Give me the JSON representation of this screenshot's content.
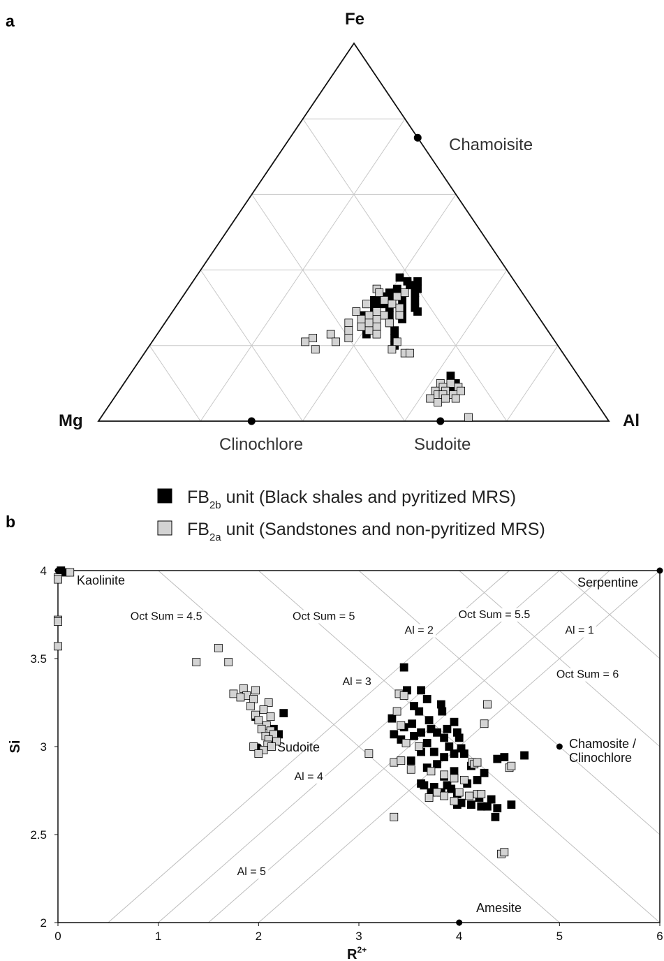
{
  "chart_data": [
    {
      "panel": "a",
      "type": "scatter",
      "subtype": "ternary",
      "vertices": {
        "top": "Fe",
        "left": "Mg",
        "right": "Al"
      },
      "grid": true,
      "grid_step": 0.2,
      "reference_points": [
        {
          "label": "Chamoisite",
          "Fe": 0.75,
          "Mg": 0.0,
          "Al": 0.25
        },
        {
          "label": "Clinochlore",
          "Fe": 0.0,
          "Mg": 0.7,
          "Al": 0.3
        },
        {
          "label": "Sudoite",
          "Fe": 0.0,
          "Mg": 0.33,
          "Al": 0.67
        }
      ],
      "series": [
        {
          "name": "FB2b unit (Black shales and pyritized MRS)",
          "color": "#000000",
          "points": [
            {
              "Fe": 0.38,
              "Al": 0.4
            },
            {
              "Fe": 0.37,
              "Al": 0.42
            },
            {
              "Fe": 0.37,
              "Al": 0.44
            },
            {
              "Fe": 0.36,
              "Al": 0.43
            },
            {
              "Fe": 0.35,
              "Al": 0.41
            },
            {
              "Fe": 0.34,
              "Al": 0.4
            },
            {
              "Fe": 0.34,
              "Al": 0.45
            },
            {
              "Fe": 0.33,
              "Al": 0.43
            },
            {
              "Fe": 0.32,
              "Al": 0.38
            },
            {
              "Fe": 0.32,
              "Al": 0.41
            },
            {
              "Fe": 0.32,
              "Al": 0.46
            },
            {
              "Fe": 0.31,
              "Al": 0.44
            },
            {
              "Fe": 0.3,
              "Al": 0.39
            },
            {
              "Fe": 0.3,
              "Al": 0.42
            },
            {
              "Fe": 0.3,
              "Al": 0.47
            },
            {
              "Fe": 0.29,
              "Al": 0.45
            },
            {
              "Fe": 0.28,
              "Al": 0.38
            },
            {
              "Fe": 0.28,
              "Al": 0.43
            },
            {
              "Fe": 0.27,
              "Al": 0.41
            },
            {
              "Fe": 0.27,
              "Al": 0.46
            },
            {
              "Fe": 0.26,
              "Al": 0.4
            },
            {
              "Fe": 0.26,
              "Al": 0.44
            },
            {
              "Fe": 0.25,
              "Al": 0.42
            },
            {
              "Fe": 0.24,
              "Al": 0.46
            },
            {
              "Fe": 0.23,
              "Al": 0.41
            },
            {
              "Fe": 0.22,
              "Al": 0.47
            },
            {
              "Fe": 0.2,
              "Al": 0.48
            },
            {
              "Fe": 0.31,
              "Al": 0.4
            },
            {
              "Fe": 0.33,
              "Al": 0.39
            },
            {
              "Fe": 0.29,
              "Al": 0.48
            },
            {
              "Fe": 0.35,
              "Al": 0.45
            },
            {
              "Fe": 0.25,
              "Al": 0.39
            },
            {
              "Fe": 0.12,
              "Al": 0.63
            },
            {
              "Fe": 0.1,
              "Al": 0.65
            },
            {
              "Fe": 0.09,
              "Al": 0.64
            },
            {
              "Fe": 0.08,
              "Al": 0.66
            },
            {
              "Fe": 0.07,
              "Al": 0.65
            },
            {
              "Fe": 0.06,
              "Al": 0.64
            }
          ]
        },
        {
          "name": "FB2a unit (Sandstones and non-pyritized MRS)",
          "color": "#d3d3d3",
          "points": [
            {
              "Fe": 0.35,
              "Al": 0.37
            },
            {
              "Fe": 0.34,
              "Al": 0.38
            },
            {
              "Fe": 0.33,
              "Al": 0.42
            },
            {
              "Fe": 0.32,
              "Al": 0.4
            },
            {
              "Fe": 0.31,
              "Al": 0.37
            },
            {
              "Fe": 0.31,
              "Al": 0.42
            },
            {
              "Fe": 0.3,
              "Al": 0.44
            },
            {
              "Fe": 0.29,
              "Al": 0.36
            },
            {
              "Fe": 0.29,
              "Al": 0.4
            },
            {
              "Fe": 0.28,
              "Al": 0.45
            },
            {
              "Fe": 0.28,
              "Al": 0.42
            },
            {
              "Fe": 0.27,
              "Al": 0.38
            },
            {
              "Fe": 0.27,
              "Al": 0.41
            },
            {
              "Fe": 0.26,
              "Al": 0.44
            },
            {
              "Fe": 0.26,
              "Al": 0.36
            },
            {
              "Fe": 0.25,
              "Al": 0.39
            },
            {
              "Fe": 0.25,
              "Al": 0.42
            },
            {
              "Fe": 0.24,
              "Al": 0.37
            },
            {
              "Fe": 0.24,
              "Al": 0.41
            },
            {
              "Fe": 0.23,
              "Al": 0.34
            },
            {
              "Fe": 0.23,
              "Al": 0.43
            },
            {
              "Fe": 0.22,
              "Al": 0.31
            },
            {
              "Fe": 0.22,
              "Al": 0.38
            },
            {
              "Fe": 0.21,
              "Al": 0.36
            },
            {
              "Fe": 0.21,
              "Al": 0.3
            },
            {
              "Fe": 0.19,
              "Al": 0.33
            },
            {
              "Fe": 0.34,
              "Al": 0.43
            },
            {
              "Fe": 0.21,
              "Al": 0.48
            },
            {
              "Fe": 0.19,
              "Al": 0.48
            },
            {
              "Fe": 0.18,
              "Al": 0.51
            },
            {
              "Fe": 0.18,
              "Al": 0.52
            },
            {
              "Fe": 0.28,
              "Al": 0.39
            },
            {
              "Fe": 0.26,
              "Al": 0.4
            },
            {
              "Fe": 0.1,
              "Al": 0.62
            },
            {
              "Fe": 0.1,
              "Al": 0.64
            },
            {
              "Fe": 0.09,
              "Al": 0.66
            },
            {
              "Fe": 0.09,
              "Al": 0.63
            },
            {
              "Fe": 0.08,
              "Al": 0.62
            },
            {
              "Fe": 0.08,
              "Al": 0.64
            },
            {
              "Fe": 0.08,
              "Al": 0.67
            },
            {
              "Fe": 0.07,
              "Al": 0.63
            },
            {
              "Fe": 0.07,
              "Al": 0.66
            },
            {
              "Fe": 0.07,
              "Al": 0.64
            },
            {
              "Fe": 0.06,
              "Al": 0.62
            },
            {
              "Fe": 0.06,
              "Al": 0.65
            },
            {
              "Fe": 0.06,
              "Al": 0.67
            },
            {
              "Fe": 0.05,
              "Al": 0.64
            },
            {
              "Fe": 0.01,
              "Al": 0.72
            }
          ]
        }
      ],
      "legend": [
        {
          "main": "FB",
          "sub": "2b",
          "rest": " unit (Black shales and pyritized MRS)",
          "color": "#000000"
        },
        {
          "main": "FB",
          "sub": "2a",
          "rest": " unit (Sandstones and non-pyritized MRS)",
          "color": "#d3d3d3"
        }
      ],
      "legend_position": "bottom-center"
    },
    {
      "panel": "b",
      "type": "scatter",
      "xlabel": "R",
      "xlabel_sup": "2+",
      "ylabel": "Si",
      "xlim": [
        0,
        6
      ],
      "ylim": [
        2,
        4
      ],
      "xticks": [
        "0",
        "1",
        "2",
        "3",
        "4",
        "5",
        "6"
      ],
      "yticks": [
        "2",
        "2.5",
        "3",
        "3.5",
        "4"
      ],
      "grid": false,
      "oct_sum_lines": [
        {
          "label": "Oct Sum = 4.5",
          "value": 4.5
        },
        {
          "label": "Oct Sum = 5",
          "value": 5
        },
        {
          "label": "Oct Sum = 5.5",
          "value": 5.5
        },
        {
          "label": "Oct Sum = 6",
          "value": 6
        }
      ],
      "al_lines": [
        {
          "label": "Al = 1",
          "value": 1
        },
        {
          "label": "Al = 2",
          "value": 2
        },
        {
          "label": "Al = 3",
          "value": 3
        },
        {
          "label": "Al = 4",
          "value": 4
        },
        {
          "label": "Al = 5",
          "value": 5
        }
      ],
      "reference_points": [
        {
          "label": "Kaolinite",
          "x": 0,
          "y": 4
        },
        {
          "label": "Serpentine",
          "x": 6,
          "y": 4
        },
        {
          "label": "Sudoite",
          "x": 2,
          "y": 3
        },
        {
          "label": "Chamosite / Clinochlore",
          "x": 5,
          "y": 3
        },
        {
          "label": "Amesite",
          "x": 4,
          "y": 2
        }
      ],
      "series": [
        {
          "name": "FB2b unit (Black shales and pyritized MRS)",
          "color": "#000000",
          "points": [
            [
              0.03,
              4.0
            ],
            [
              0.08,
              3.99
            ],
            [
              2.25,
              3.19
            ],
            [
              1.97,
              3.17
            ],
            [
              2.15,
              3.1
            ],
            [
              2.2,
              3.07
            ],
            [
              3.45,
              3.45
            ],
            [
              3.48,
              3.32
            ],
            [
              3.62,
              3.32
            ],
            [
              3.68,
              3.27
            ],
            [
              3.82,
              3.24
            ],
            [
              3.55,
              3.23
            ],
            [
              3.6,
              3.2
            ],
            [
              3.83,
              3.2
            ],
            [
              3.33,
              3.16
            ],
            [
              3.7,
              3.15
            ],
            [
              3.53,
              3.13
            ],
            [
              3.95,
              3.14
            ],
            [
              3.45,
              3.11
            ],
            [
              3.72,
              3.1
            ],
            [
              3.88,
              3.1
            ],
            [
              3.62,
              3.08
            ],
            [
              3.78,
              3.08
            ],
            [
              3.98,
              3.08
            ],
            [
              3.35,
              3.07
            ],
            [
              3.55,
              3.06
            ],
            [
              3.85,
              3.05
            ],
            [
              4.0,
              3.05
            ],
            [
              3.68,
              3.02
            ],
            [
              3.42,
              3.04
            ],
            [
              3.9,
              3.0
            ],
            [
              4.02,
              2.99
            ],
            [
              3.75,
              2.97
            ],
            [
              3.95,
              2.96
            ],
            [
              3.62,
              2.97
            ],
            [
              4.05,
              2.96
            ],
            [
              3.85,
              2.94
            ],
            [
              4.45,
              2.94
            ],
            [
              4.38,
              2.93
            ],
            [
              4.65,
              2.95
            ],
            [
              3.52,
              2.92
            ],
            [
              3.78,
              2.9
            ],
            [
              4.12,
              2.89
            ],
            [
              3.68,
              2.88
            ],
            [
              3.95,
              2.86
            ],
            [
              4.25,
              2.85
            ],
            [
              3.85,
              2.83
            ],
            [
              4.18,
              2.81
            ],
            [
              4.08,
              2.79
            ],
            [
              3.65,
              2.78
            ],
            [
              3.88,
              2.78
            ],
            [
              3.75,
              2.77
            ],
            [
              3.62,
              2.79
            ],
            [
              3.92,
              2.76
            ],
            [
              3.82,
              2.74
            ],
            [
              3.72,
              2.74
            ],
            [
              3.98,
              2.73
            ],
            [
              4.2,
              2.71
            ],
            [
              4.32,
              2.7
            ],
            [
              4.02,
              2.68
            ],
            [
              4.12,
              2.67
            ],
            [
              3.98,
              2.67
            ],
            [
              4.28,
              2.66
            ],
            [
              4.22,
              2.66
            ],
            [
              4.52,
              2.67
            ],
            [
              4.38,
              2.65
            ],
            [
              4.36,
              2.6
            ]
          ]
        },
        {
          "name": "FB2a unit (Sandstones and non-pyritized MRS)",
          "color": "#d3d3d3",
          "points": [
            [
              0.0,
              3.96
            ],
            [
              0.0,
              3.95
            ],
            [
              0.12,
              3.99
            ],
            [
              0.0,
              3.72
            ],
            [
              0.0,
              3.71
            ],
            [
              0.0,
              3.57
            ],
            [
              1.38,
              3.48
            ],
            [
              1.6,
              3.56
            ],
            [
              1.7,
              3.48
            ],
            [
              1.75,
              3.3
            ],
            [
              1.85,
              3.33
            ],
            [
              1.88,
              3.29
            ],
            [
              1.97,
              3.32
            ],
            [
              1.82,
              3.28
            ],
            [
              1.95,
              3.27
            ],
            [
              1.92,
              3.23
            ],
            [
              2.1,
              3.25
            ],
            [
              2.05,
              3.21
            ],
            [
              1.97,
              3.18
            ],
            [
              2.12,
              3.17
            ],
            [
              2.0,
              3.15
            ],
            [
              2.08,
              3.12
            ],
            [
              2.03,
              3.1
            ],
            [
              2.12,
              3.09
            ],
            [
              2.07,
              3.06
            ],
            [
              2.15,
              3.07
            ],
            [
              2.1,
              3.04
            ],
            [
              2.18,
              3.03
            ],
            [
              2.09,
              3.01
            ],
            [
              2.13,
              3.0
            ],
            [
              1.95,
              3.0
            ],
            [
              2.05,
              2.98
            ],
            [
              2.0,
              2.96
            ],
            [
              3.4,
              3.3
            ],
            [
              3.45,
              3.29
            ],
            [
              3.38,
              3.2
            ],
            [
              3.42,
              3.12
            ],
            [
              3.47,
              3.02
            ],
            [
              3.6,
              3.0
            ],
            [
              3.1,
              2.96
            ],
            [
              3.35,
              2.91
            ],
            [
              3.42,
              2.92
            ],
            [
              3.52,
              2.87
            ],
            [
              3.72,
              2.86
            ],
            [
              3.85,
              2.84
            ],
            [
              3.95,
              2.82
            ],
            [
              4.05,
              2.81
            ],
            [
              4.13,
              2.91
            ],
            [
              4.15,
              2.9
            ],
            [
              4.18,
              2.91
            ],
            [
              4.25,
              3.13
            ],
            [
              4.28,
              3.24
            ],
            [
              4.5,
              2.88
            ],
            [
              4.52,
              2.89
            ],
            [
              3.78,
              2.74
            ],
            [
              3.85,
              2.72
            ],
            [
              4.0,
              2.74
            ],
            [
              4.1,
              2.72
            ],
            [
              4.18,
              2.73
            ],
            [
              4.22,
              2.73
            ],
            [
              3.7,
              2.71
            ],
            [
              3.95,
              2.69
            ],
            [
              3.35,
              2.6
            ],
            [
              4.42,
              2.39
            ],
            [
              4.45,
              2.4
            ]
          ]
        }
      ]
    }
  ],
  "panels": {
    "a": {
      "label": "a",
      "vertex_top": "Fe",
      "vertex_left": "Mg",
      "vertex_right": "Al",
      "chamoisite": "Chamoisite",
      "clinochlore": "Clinochlore",
      "sudoite": "Sudoite"
    },
    "b": {
      "label": "b",
      "kaolinite": "Kaolinite",
      "serpentine": "Serpentine",
      "sudoite": "Sudoite",
      "chamosite_line1": "Chamosite /",
      "chamosite_line2": "Clinochlore",
      "amesite": "Amesite"
    }
  }
}
